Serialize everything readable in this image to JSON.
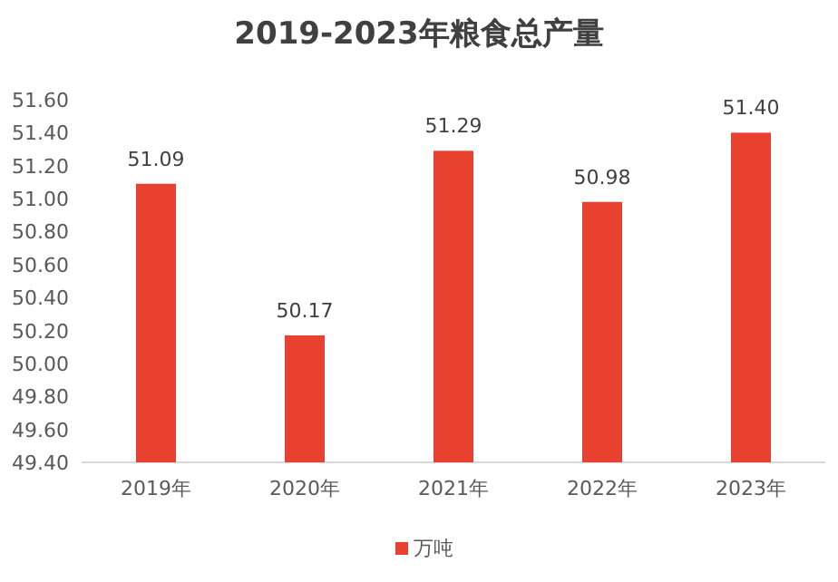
{
  "chart_data": {
    "type": "bar",
    "title": "2019-2023年粮食总产量",
    "categories": [
      "2019年",
      "2020年",
      "2021年",
      "2022年",
      "2023年"
    ],
    "series": [
      {
        "name": "万吨",
        "color": "#e8412f",
        "values": [
          51.09,
          50.17,
          51.29,
          50.98,
          51.4
        ],
        "value_labels": [
          "51.09",
          "50.17",
          "51.29",
          "50.98",
          "51.40"
        ]
      }
    ],
    "ylim": [
      49.4,
      51.6
    ],
    "yticks": [
      {
        "value": 49.4,
        "label": "49.40"
      },
      {
        "value": 49.6,
        "label": "49.60"
      },
      {
        "value": 49.8,
        "label": "49.80"
      },
      {
        "value": 50.0,
        "label": "50.00"
      },
      {
        "value": 50.2,
        "label": "50.20"
      },
      {
        "value": 50.4,
        "label": "50.40"
      },
      {
        "value": 50.6,
        "label": "50.60"
      },
      {
        "value": 50.8,
        "label": "50.80"
      },
      {
        "value": 51.0,
        "label": "51.00"
      },
      {
        "value": 51.2,
        "label": "51.20"
      },
      {
        "value": 51.4,
        "label": "51.40"
      },
      {
        "value": 51.6,
        "label": "51.60"
      }
    ],
    "grid": false,
    "legend": "bottom"
  }
}
